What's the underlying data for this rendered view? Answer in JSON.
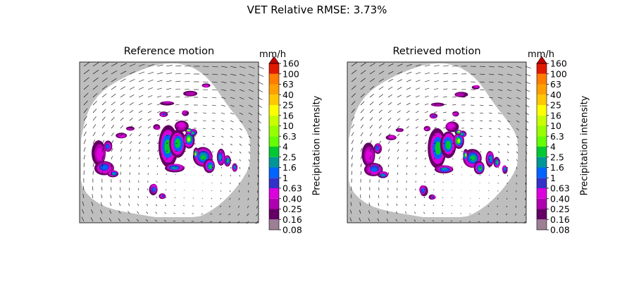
{
  "figure": {
    "suptitle": "VET Relative RMSE: 3.73%"
  },
  "chart_data": [
    {
      "type": "heatmap",
      "title": "Reference motion",
      "colorbar": {
        "unit": "mm/h",
        "label": "Precipitation intensity",
        "ticks": [
          "0.08",
          "0.16",
          "0.25",
          "0.40",
          "0.63",
          "1",
          "1.6",
          "2.5",
          "4",
          "6.3",
          "10",
          "16",
          "25",
          "40",
          "63",
          "100",
          "160"
        ],
        "colors": [
          "#9d7f95",
          "#640064",
          "#af00af",
          "#dc00dc",
          "#3232c8",
          "#0064ff",
          "#009696",
          "#00c832",
          "#64ff00",
          "#96ff00",
          "#c8ff00",
          "#ffff00",
          "#ffc800",
          "#ffa000",
          "#ff7d00",
          "#e11900"
        ],
        "extend_color": "#c10000"
      },
      "background_color": "#bebebe",
      "no_rain_color": "#ffffff"
    },
    {
      "type": "heatmap",
      "title": "Retrieved motion",
      "colorbar": {
        "unit": "mm/h",
        "label": "Precipitation intensity",
        "ticks": [
          "0.08",
          "0.16",
          "0.25",
          "0.40",
          "0.63",
          "1",
          "1.6",
          "2.5",
          "4",
          "6.3",
          "10",
          "16",
          "25",
          "40",
          "63",
          "100",
          "160"
        ],
        "colors": [
          "#9d7f95",
          "#640064",
          "#af00af",
          "#dc00dc",
          "#3232c8",
          "#0064ff",
          "#009696",
          "#00c832",
          "#64ff00",
          "#96ff00",
          "#c8ff00",
          "#ffff00",
          "#ffc800",
          "#ffa000",
          "#ff7d00",
          "#e11900"
        ],
        "extend_color": "#c10000"
      },
      "background_color": "#bebebe",
      "no_rain_color": "#ffffff"
    }
  ]
}
